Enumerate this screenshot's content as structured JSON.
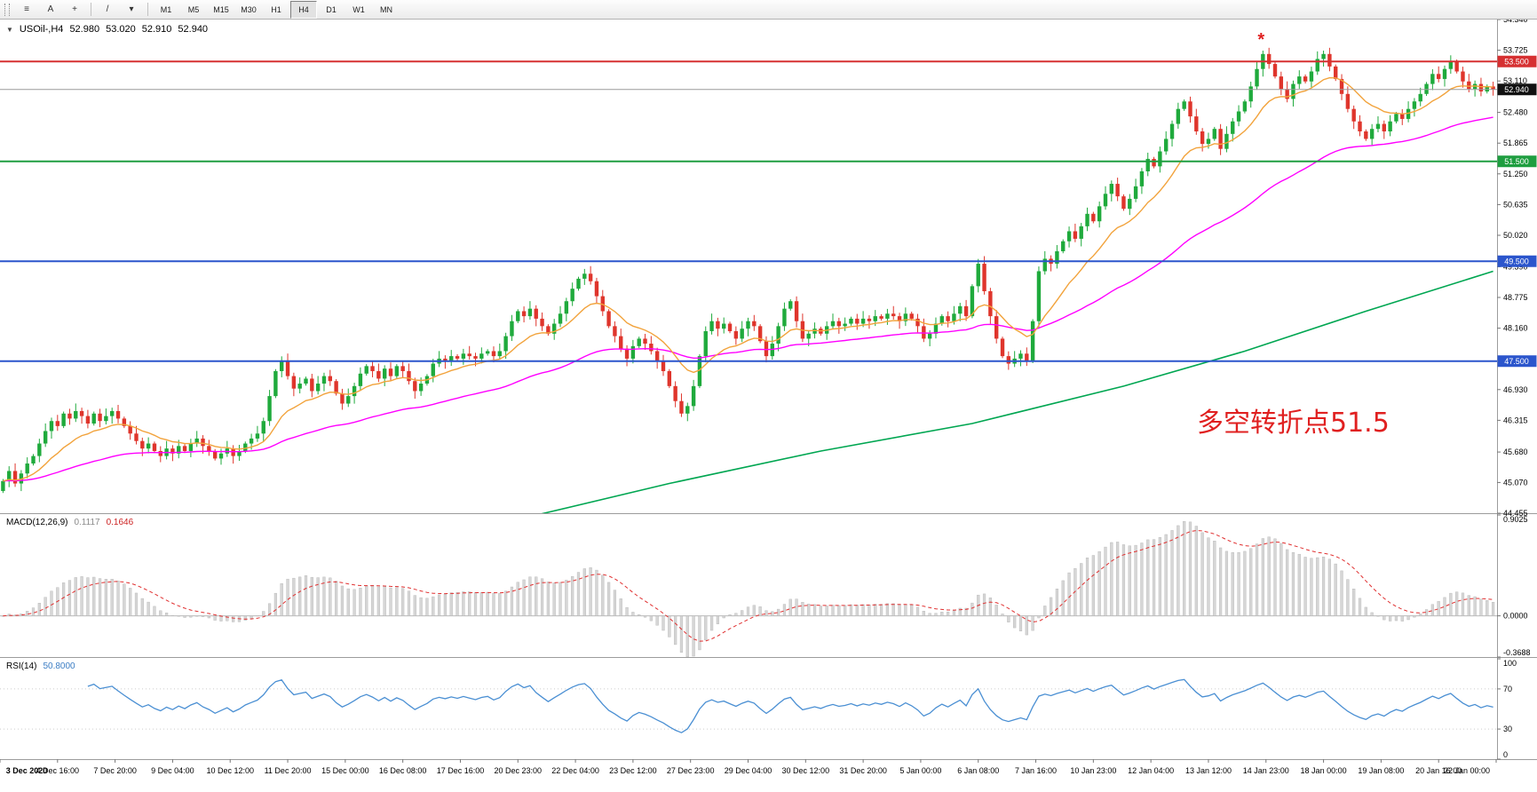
{
  "toolbar": {
    "icons": [
      {
        "name": "chart-list-icon",
        "glyph": "≡"
      },
      {
        "name": "text-annotation-tool-icon",
        "glyph": "A"
      },
      {
        "name": "crosshair-tool-icon",
        "glyph": "+"
      },
      {
        "name": "separator",
        "glyph": ""
      },
      {
        "name": "trendline-tool-icon",
        "glyph": "/"
      },
      {
        "name": "draw-tools-dropdown-icon",
        "glyph": "▾"
      },
      {
        "name": "separator",
        "glyph": ""
      }
    ],
    "timeframes": [
      "M1",
      "M5",
      "M15",
      "M30",
      "H1",
      "H4",
      "D1",
      "W1",
      "MN"
    ],
    "active_timeframe": "H4"
  },
  "chart_header": {
    "marker": "▼",
    "symbol": "USOil-,H4",
    "open": "52.980",
    "high": "53.020",
    "low": "52.910",
    "close": "52.940"
  },
  "chart_data": {
    "type": "candlestick",
    "symbol": "USOil",
    "timeframe": "H4",
    "price_axis": {
      "min": 44.455,
      "max": 54.34,
      "labels": [
        "54.340",
        "53.725",
        "53.110",
        "52.480",
        "51.865",
        "51.250",
        "50.635",
        "50.020",
        "49.390",
        "48.775",
        "48.160",
        "46.930",
        "46.315",
        "45.680",
        "45.070",
        "44.455"
      ]
    },
    "closes": [
      45.1,
      45.3,
      45.05,
      45.25,
      45.45,
      45.6,
      45.85,
      46.1,
      46.3,
      46.2,
      46.45,
      46.35,
      46.5,
      46.4,
      46.25,
      46.45,
      46.3,
      46.4,
      46.5,
      46.35,
      46.2,
      46.05,
      45.9,
      45.75,
      45.85,
      45.7,
      45.6,
      45.75,
      45.65,
      45.8,
      45.7,
      45.85,
      45.95,
      45.8,
      45.7,
      45.55,
      45.65,
      45.75,
      45.6,
      45.7,
      45.85,
      45.95,
      46.05,
      46.3,
      46.8,
      47.3,
      47.5,
      47.2,
      46.95,
      47.05,
      47.15,
      46.9,
      47.05,
      47.2,
      47.1,
      46.85,
      46.65,
      46.8,
      47.0,
      47.25,
      47.4,
      47.3,
      47.15,
      47.35,
      47.2,
      47.4,
      47.3,
      47.1,
      46.9,
      47.05,
      47.2,
      47.45,
      47.55,
      47.5,
      47.6,
      47.55,
      47.65,
      47.6,
      47.55,
      47.65,
      47.7,
      47.6,
      47.7,
      48.0,
      48.3,
      48.5,
      48.4,
      48.55,
      48.35,
      48.2,
      48.05,
      48.25,
      48.45,
      48.7,
      48.95,
      49.15,
      49.25,
      49.1,
      48.8,
      48.5,
      48.2,
      48.0,
      47.75,
      47.55,
      47.8,
      47.95,
      47.85,
      47.7,
      47.5,
      47.3,
      47.0,
      46.7,
      46.45,
      46.6,
      47.0,
      47.6,
      48.1,
      48.3,
      48.15,
      48.25,
      48.1,
      47.95,
      48.15,
      48.3,
      48.2,
      47.9,
      47.6,
      47.85,
      48.2,
      48.55,
      48.7,
      48.3,
      47.95,
      48.05,
      48.15,
      48.05,
      48.2,
      48.3,
      48.2,
      48.25,
      48.35,
      48.25,
      48.35,
      48.3,
      48.4,
      48.35,
      48.45,
      48.4,
      48.3,
      48.45,
      48.35,
      48.2,
      47.95,
      48.05,
      48.25,
      48.4,
      48.3,
      48.45,
      48.6,
      48.4,
      49.0,
      49.45,
      48.9,
      48.4,
      47.95,
      47.6,
      47.45,
      47.55,
      47.65,
      47.5,
      48.3,
      49.3,
      49.55,
      49.45,
      49.7,
      49.9,
      50.1,
      49.95,
      50.2,
      50.45,
      50.3,
      50.6,
      50.85,
      51.05,
      50.8,
      50.55,
      50.75,
      51.0,
      51.3,
      51.55,
      51.4,
      51.7,
      51.95,
      52.25,
      52.55,
      52.7,
      52.4,
      52.1,
      51.85,
      51.95,
      52.15,
      51.75,
      52.05,
      52.3,
      52.5,
      52.7,
      53.0,
      53.35,
      53.65,
      53.45,
      53.2,
      52.95,
      52.75,
      53.05,
      53.2,
      53.1,
      53.3,
      53.55,
      53.65,
      53.4,
      53.15,
      52.85,
      52.55,
      52.3,
      52.1,
      51.95,
      52.15,
      52.25,
      52.1,
      52.3,
      52.45,
      52.35,
      52.55,
      52.7,
      52.85,
      53.05,
      53.25,
      53.15,
      53.35,
      53.5,
      53.3,
      53.1,
      52.95,
      53.05,
      52.9,
      53.0,
      52.94
    ],
    "levels": [
      {
        "value": 53.5,
        "label": "53.500",
        "color": "#d63031"
      },
      {
        "value": 51.5,
        "label": "51.500",
        "color": "#1e9e40"
      },
      {
        "value": 49.5,
        "label": "49.500",
        "color": "#2b55cc"
      },
      {
        "value": 47.5,
        "label": "47.500",
        "color": "#2b55cc"
      }
    ],
    "current_price": {
      "value": 52.94,
      "label": "52.940"
    },
    "moving_averages": {
      "fast": {
        "period": 13,
        "color": "#f2a33c"
      },
      "mid": {
        "period": 55,
        "color": "#ff00ff"
      },
      "slow": {
        "color": "#00a651",
        "points": [
          [
            84,
            44.3
          ],
          [
            110,
            45.05
          ],
          [
            135,
            45.7
          ],
          [
            160,
            46.25
          ],
          [
            185,
            47.0
          ],
          [
            205,
            47.7
          ],
          [
            225,
            48.5
          ],
          [
            246,
            49.3
          ]
        ]
      }
    },
    "macd": {
      "label": "MACD(12,26,9)",
      "main_value": "0.1117",
      "signal_value": "0.1646",
      "fast": 12,
      "slow": 26,
      "signal": 9,
      "range": [
        -0.3688,
        0.9025
      ],
      "axis_labels": [
        "0.9025",
        "0.0000",
        "-0.3688"
      ],
      "hist_color": "#d6d6d6",
      "signal_color": "#e03030"
    },
    "rsi": {
      "label": "RSI(14)",
      "value": "50.8000",
      "period": 14,
      "axis_labels": [
        "100",
        "70",
        "30",
        "0"
      ],
      "levels": [
        70,
        30
      ],
      "color": "#4a8fd3"
    },
    "time_labels": [
      "3 Dec 2020",
      "4 Dec 16:00",
      "7 Dec 20:00",
      "9 Dec 04:00",
      "10 Dec 12:00",
      "11 Dec 20:00",
      "15 Dec 00:00",
      "16 Dec 08:00",
      "17 Dec 16:00",
      "20 Dec 23:00",
      "22 Dec 04:00",
      "23 Dec 12:00",
      "27 Dec 23:00",
      "29 Dec 04:00",
      "30 Dec 12:00",
      "31 Dec 20:00",
      "5 Jan 00:00",
      "6 Jan 08:00",
      "7 Jan 16:00",
      "10 Jan 23:00",
      "12 Jan 04:00",
      "13 Jan 12:00",
      "14 Jan 23:00",
      "18 Jan 00:00",
      "19 Jan 08:00",
      "20 Jan 16:00",
      "22 Jan 00:00"
    ],
    "candle_colors": {
      "bull": "#1faa3c",
      "bear": "#df352c"
    },
    "annotations": [
      {
        "type": "text",
        "text": "多空转折点51.5",
        "color": "#e02020",
        "x_frac": 0.8,
        "price": 46.45,
        "font_size": 30
      },
      {
        "type": "marker",
        "text": "*",
        "color": "#e02020",
        "candle_index": 208,
        "price": 53.92
      }
    ]
  }
}
